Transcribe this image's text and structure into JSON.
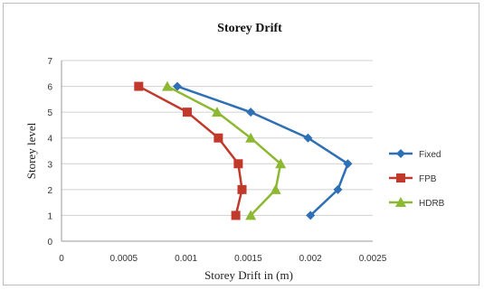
{
  "chart_data": {
    "type": "scatter",
    "title": "Storey Drift",
    "xlabel": "Storey Drift in (m)",
    "ylabel": "Storey level",
    "xlim": [
      0,
      0.0025
    ],
    "ylim": [
      0,
      7
    ],
    "x_ticks": [
      "0",
      "0.0005",
      "0.001",
      "0.0015",
      "0.002",
      "0.0025"
    ],
    "y_ticks": [
      "0",
      "1",
      "2",
      "3",
      "4",
      "5",
      "6",
      "7"
    ],
    "grid": "horizontal",
    "legend_position": "right",
    "series": [
      {
        "name": "Fixed",
        "color": "#2e6fb5",
        "marker": "diamond",
        "points": [
          [
            0.002,
            1
          ],
          [
            0.00222,
            2
          ],
          [
            0.0023,
            3
          ],
          [
            0.00198,
            4
          ],
          [
            0.00152,
            5
          ],
          [
            0.00093,
            6
          ]
        ]
      },
      {
        "name": "FPB",
        "color": "#c0392b",
        "marker": "square",
        "points": [
          [
            0.0014,
            1
          ],
          [
            0.00145,
            2
          ],
          [
            0.00142,
            3
          ],
          [
            0.00126,
            4
          ],
          [
            0.00101,
            5
          ],
          [
            0.00062,
            6
          ]
        ]
      },
      {
        "name": "HDRB",
        "color": "#8db832",
        "marker": "triangle",
        "points": [
          [
            0.00152,
            1
          ],
          [
            0.00172,
            2
          ],
          [
            0.00176,
            3
          ],
          [
            0.00152,
            4
          ],
          [
            0.00125,
            5
          ],
          [
            0.00085,
            6
          ]
        ]
      }
    ]
  }
}
